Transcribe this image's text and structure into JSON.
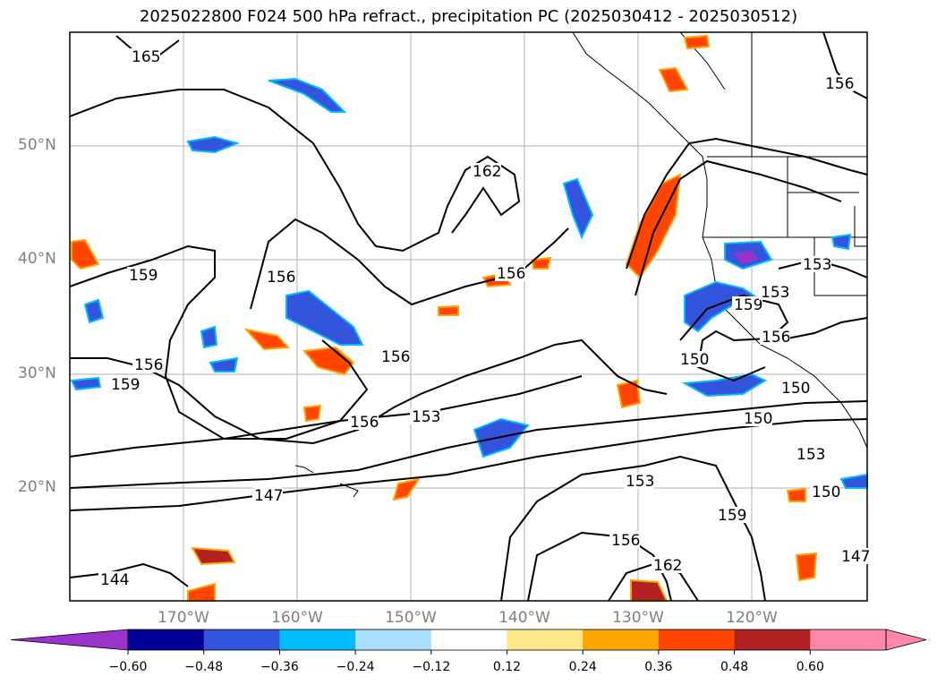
{
  "title": "2025022800 F024 500 hPa refract., precipitation PC (2025030412 - 2025030512)",
  "latitude_labels": [
    "50°N",
    "40°N",
    "30°N",
    "20°N"
  ],
  "longitude_labels": [
    "170°W",
    "160°W",
    "150°W",
    "140°W",
    "130°W",
    "120°W"
  ],
  "contour_labels": [
    "165",
    "162",
    "159",
    "156",
    "153",
    "150",
    "147",
    "144"
  ],
  "colorbar": {
    "tick_labels": [
      "−0.60",
      "−0.48",
      "−0.36",
      "−0.24",
      "−0.12",
      "0.12",
      "0.24",
      "0.36",
      "0.48",
      "0.60"
    ],
    "colors": [
      "#9933cc",
      "#000099",
      "#3355dd",
      "#00bbff",
      "#aaddff",
      "#ffffff",
      "#ffe88a",
      "#ffa500",
      "#ff4500",
      "#b22222",
      "#ff88aa",
      "#ff88aa"
    ]
  }
}
